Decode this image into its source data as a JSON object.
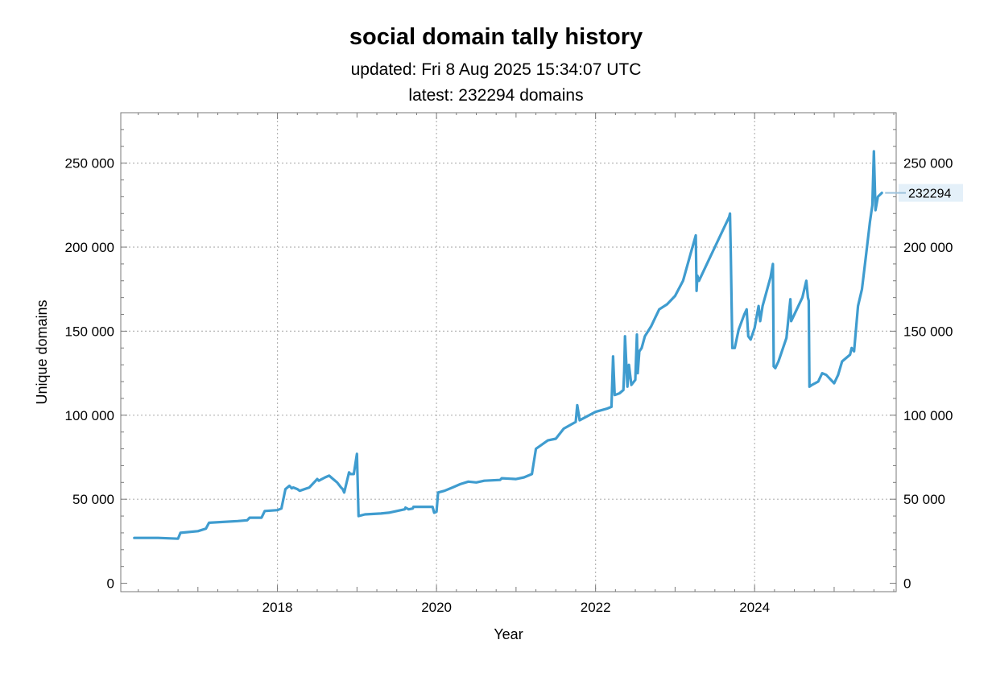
{
  "chart_data": {
    "type": "line",
    "title": "social domain tally history",
    "subtitle_updated": "updated: Fri 8 Aug 2025 15:34:07 UTC",
    "subtitle_latest": "latest: 232294 domains",
    "xlabel": "Year",
    "ylabel": "Unique domains",
    "xlim": [
      2016.03,
      2025.78
    ],
    "ylim": [
      -5000,
      280000
    ],
    "x_ticks": [
      2018,
      2020,
      2022,
      2024
    ],
    "x_tick_labels": [
      "2018",
      "2020",
      "2022",
      "2024"
    ],
    "y_ticks": [
      0,
      50000,
      100000,
      150000,
      200000,
      250000
    ],
    "y_tick_labels": [
      "0",
      "50 000",
      "100 000",
      "150 000",
      "200 000",
      "250 000"
    ],
    "grid": true,
    "latest_value_label": "232294",
    "series": [
      {
        "color": "#3f9ccf",
        "x": [
          2016.2,
          2016.5,
          2016.75,
          2016.78,
          2017.0,
          2017.1,
          2017.14,
          2017.5,
          2017.62,
          2017.65,
          2017.8,
          2017.84,
          2018.0,
          2018.05,
          2018.1,
          2018.15,
          2018.18,
          2018.2,
          2018.25,
          2018.28,
          2018.4,
          2018.5,
          2018.52,
          2018.6,
          2018.65,
          2018.7,
          2018.75,
          2018.8,
          2018.82,
          2018.84,
          2018.9,
          2018.92,
          2018.96,
          2019.0,
          2019.02,
          2019.1,
          2019.3,
          2019.4,
          2019.6,
          2019.61,
          2019.65,
          2019.7,
          2019.71,
          2019.8,
          2019.95,
          2019.97,
          2020.0,
          2020.02,
          2020.1,
          2020.2,
          2020.3,
          2020.4,
          2020.5,
          2020.6,
          2020.8,
          2020.82,
          2021.0,
          2021.1,
          2021.2,
          2021.22,
          2021.25,
          2021.4,
          2021.5,
          2021.6,
          2021.75,
          2021.77,
          2021.8,
          2022.0,
          2022.15,
          2022.2,
          2022.22,
          2022.24,
          2022.3,
          2022.35,
          2022.36,
          2022.37,
          2022.4,
          2022.42,
          2022.45,
          2022.5,
          2022.52,
          2022.53,
          2022.55,
          2022.58,
          2022.62,
          2022.7,
          2022.75,
          2022.8,
          2022.9,
          2023.0,
          2023.1,
          2023.2,
          2023.26,
          2023.27,
          2023.28,
          2023.3,
          2023.4,
          2023.5,
          2023.6,
          2023.68,
          2023.69,
          2023.7,
          2023.72,
          2023.75,
          2023.8,
          2023.87,
          2023.9,
          2023.92,
          2023.95,
          2024.0,
          2024.05,
          2024.07,
          2024.1,
          2024.2,
          2024.23,
          2024.24,
          2024.26,
          2024.3,
          2024.4,
          2024.45,
          2024.46,
          2024.5,
          2024.6,
          2024.65,
          2024.67,
          2024.68,
          2024.69,
          2024.72,
          2024.8,
          2024.85,
          2024.9,
          2025.0,
          2025.05,
          2025.1,
          2025.2,
          2025.22,
          2025.25,
          2025.3,
          2025.35,
          2025.4,
          2025.45,
          2025.48,
          2025.5,
          2025.52,
          2025.55,
          2025.6
        ],
        "y": [
          27000,
          27000,
          26500,
          30000,
          31000,
          32500,
          36000,
          37000,
          37500,
          39000,
          39000,
          43000,
          43500,
          44500,
          56000,
          58000,
          56500,
          57000,
          56000,
          55000,
          57000,
          62000,
          61000,
          63000,
          64000,
          62000,
          60000,
          57000,
          56000,
          54000,
          66000,
          65000,
          65000,
          77000,
          40000,
          41000,
          41500,
          42000,
          44000,
          45000,
          44000,
          44500,
          45500,
          45500,
          45500,
          42000,
          42500,
          54000,
          55000,
          57000,
          59000,
          60500,
          60000,
          61000,
          61500,
          62500,
          62000,
          63000,
          65000,
          71000,
          80000,
          85000,
          86000,
          92000,
          96000,
          106000,
          97000,
          102000,
          104000,
          105000,
          135000,
          112000,
          113000,
          115000,
          126000,
          147000,
          117000,
          130000,
          118000,
          121000,
          148000,
          125000,
          138000,
          140000,
          147000,
          153000,
          158000,
          163000,
          166000,
          171000,
          180000,
          197000,
          207000,
          174000,
          183000,
          180000,
          190000,
          200000,
          210000,
          218000,
          220000,
          196000,
          140000,
          140000,
          151000,
          160000,
          163000,
          147000,
          145000,
          152000,
          165000,
          156000,
          165000,
          182000,
          190000,
          129000,
          128000,
          132000,
          146000,
          169000,
          156000,
          160000,
          170000,
          180000,
          170000,
          168000,
          117000,
          118000,
          120000,
          125000,
          124000,
          119000,
          124000,
          132000,
          136000,
          140000,
          138000,
          165000,
          175000,
          195000,
          215000,
          225000,
          257000,
          222000,
          230000,
          232294
        ]
      }
    ]
  }
}
